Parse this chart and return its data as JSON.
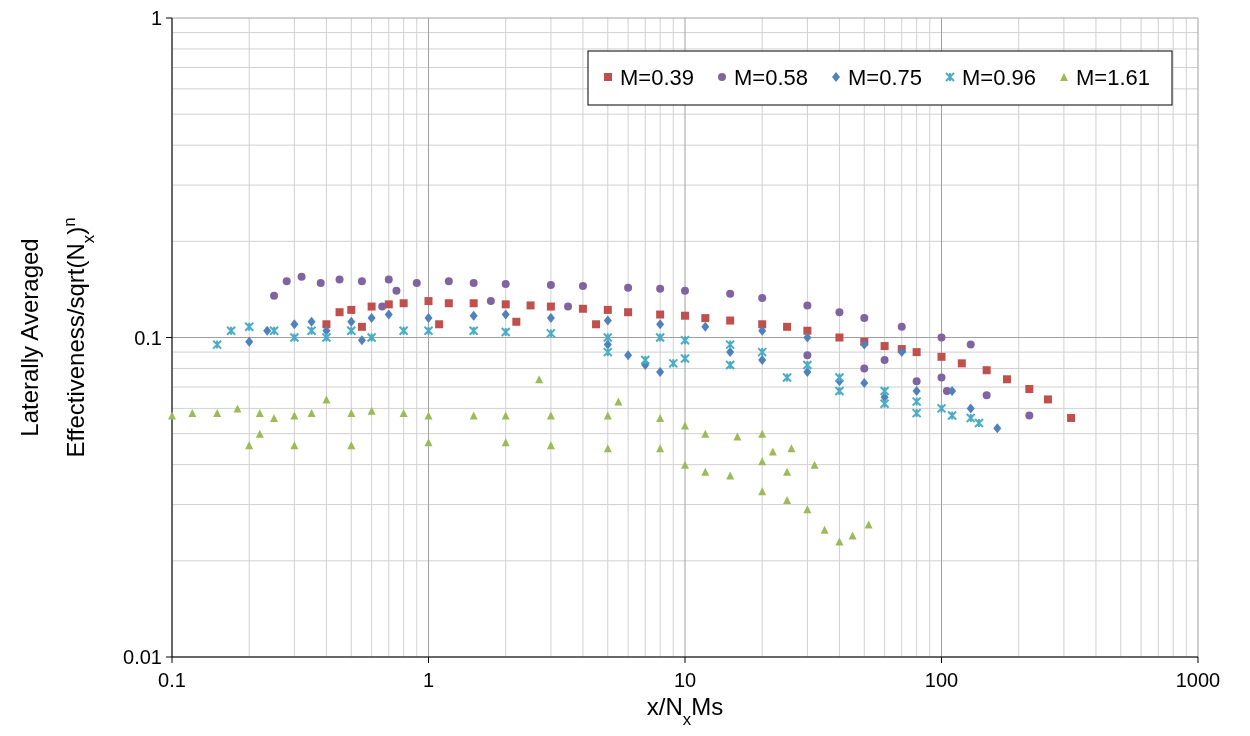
{
  "chart_data": {
    "type": "scatter",
    "xlabel": "x/N$_{x}$Ms",
    "ylabel": "Laterally Averaged\nEffectiveness/sqrt(N$_{x}$)$^{n}$",
    "log": "xy",
    "grid": true,
    "legend": "top right",
    "xlim": [
      0.1,
      1000
    ],
    "xticks": [
      0.1,
      1,
      10,
      100,
      1000
    ],
    "ylim": [
      0.01,
      1
    ],
    "yticks": [
      0.01,
      0.1,
      1
    ],
    "series": [
      {
        "name": "M=0.39",
        "color": "#c0504d",
        "marker": "square",
        "x": [
          0.4,
          0.45,
          0.5,
          0.6,
          0.7,
          0.8,
          1,
          1.2,
          1.5,
          2,
          2.5,
          3,
          4,
          5,
          6,
          8,
          10,
          12,
          15,
          20,
          25,
          30,
          40,
          50,
          60,
          70,
          80,
          100,
          120,
          150,
          180,
          220,
          260,
          320,
          0.55,
          1.1,
          2.2,
          4.5
        ],
        "values": [
          0.11,
          0.12,
          0.122,
          0.125,
          0.127,
          0.128,
          0.13,
          0.128,
          0.128,
          0.127,
          0.126,
          0.125,
          0.123,
          0.122,
          0.12,
          0.118,
          0.117,
          0.115,
          0.113,
          0.11,
          0.108,
          0.105,
          0.1,
          0.097,
          0.094,
          0.092,
          0.09,
          0.087,
          0.083,
          0.079,
          0.074,
          0.069,
          0.064,
          0.056,
          0.108,
          0.11,
          0.112,
          0.11
        ]
      },
      {
        "name": "M=0.58",
        "color": "#8064a2",
        "marker": "circle",
        "x": [
          0.25,
          0.28,
          0.32,
          0.38,
          0.45,
          0.55,
          0.7,
          0.75,
          0.9,
          1.2,
          1.5,
          2,
          3,
          4,
          6,
          8,
          10,
          15,
          20,
          30,
          40,
          50,
          70,
          100,
          130,
          30,
          50,
          80,
          105,
          60,
          100,
          150,
          220,
          0.66,
          1.75,
          3.5
        ],
        "values": [
          0.135,
          0.15,
          0.155,
          0.148,
          0.152,
          0.15,
          0.152,
          0.14,
          0.148,
          0.15,
          0.148,
          0.147,
          0.146,
          0.145,
          0.143,
          0.142,
          0.14,
          0.137,
          0.133,
          0.126,
          0.12,
          0.115,
          0.108,
          0.1,
          0.095,
          0.088,
          0.08,
          0.073,
          0.068,
          0.085,
          0.075,
          0.066,
          0.057,
          0.125,
          0.13,
          0.125
        ]
      },
      {
        "name": "M=0.75",
        "color": "#4f81bd",
        "marker": "diamond",
        "x": [
          0.2,
          0.235,
          0.3,
          0.35,
          0.4,
          0.5,
          0.6,
          0.7,
          0.55,
          1,
          1.5,
          2,
          3,
          5,
          8,
          12,
          20,
          30,
          50,
          70,
          5,
          6,
          7,
          8,
          15,
          20,
          30,
          50,
          80,
          110,
          130,
          165,
          40,
          60
        ],
        "values": [
          0.097,
          0.105,
          0.11,
          0.112,
          0.105,
          0.112,
          0.115,
          0.118,
          0.098,
          0.115,
          0.117,
          0.118,
          0.115,
          0.113,
          0.11,
          0.108,
          0.105,
          0.1,
          0.095,
          0.09,
          0.095,
          0.088,
          0.082,
          0.078,
          0.09,
          0.085,
          0.078,
          0.072,
          0.068,
          0.068,
          0.06,
          0.052,
          0.073,
          0.065
        ]
      },
      {
        "name": "M=0.96",
        "color": "#4bacc6",
        "marker": "cross",
        "x": [
          0.15,
          0.17,
          0.2,
          0.25,
          0.3,
          0.35,
          0.4,
          0.5,
          0.6,
          0.8,
          1,
          1.5,
          2,
          3,
          5,
          8,
          10,
          15,
          20,
          30,
          40,
          60,
          80,
          100,
          130,
          5,
          7,
          9,
          10,
          15,
          25,
          40,
          60,
          80,
          110,
          140
        ],
        "values": [
          0.095,
          0.105,
          0.108,
          0.105,
          0.1,
          0.105,
          0.1,
          0.105,
          0.1,
          0.105,
          0.105,
          0.105,
          0.104,
          0.103,
          0.1,
          0.1,
          0.098,
          0.095,
          0.09,
          0.082,
          0.075,
          0.068,
          0.063,
          0.06,
          0.056,
          0.09,
          0.085,
          0.083,
          0.086,
          0.082,
          0.075,
          0.068,
          0.062,
          0.058,
          0.057,
          0.054
        ]
      },
      {
        "name": "M=1.61",
        "color": "#9bbb59",
        "marker": "triangle",
        "x": [
          0.1,
          0.12,
          0.15,
          0.18,
          0.22,
          0.25,
          0.2,
          0.22,
          0.3,
          0.35,
          0.4,
          0.5,
          0.6,
          0.8,
          1,
          1.5,
          2,
          2.7,
          3,
          5,
          5.5,
          8,
          10,
          0.3,
          0.5,
          1,
          2,
          3,
          5,
          8,
          12,
          16,
          20,
          22,
          26,
          20,
          25,
          32,
          10,
          12,
          15,
          20,
          25,
          30,
          35,
          40,
          45,
          52
        ],
        "values": [
          0.057,
          0.058,
          0.058,
          0.06,
          0.058,
          0.056,
          0.046,
          0.05,
          0.057,
          0.058,
          0.064,
          0.058,
          0.059,
          0.058,
          0.057,
          0.057,
          0.057,
          0.074,
          0.057,
          0.057,
          0.063,
          0.056,
          0.053,
          0.046,
          0.046,
          0.047,
          0.047,
          0.046,
          0.045,
          0.045,
          0.05,
          0.049,
          0.05,
          0.044,
          0.045,
          0.041,
          0.038,
          0.04,
          0.04,
          0.038,
          0.037,
          0.033,
          0.031,
          0.029,
          0.025,
          0.023,
          0.024,
          0.026
        ]
      }
    ]
  }
}
